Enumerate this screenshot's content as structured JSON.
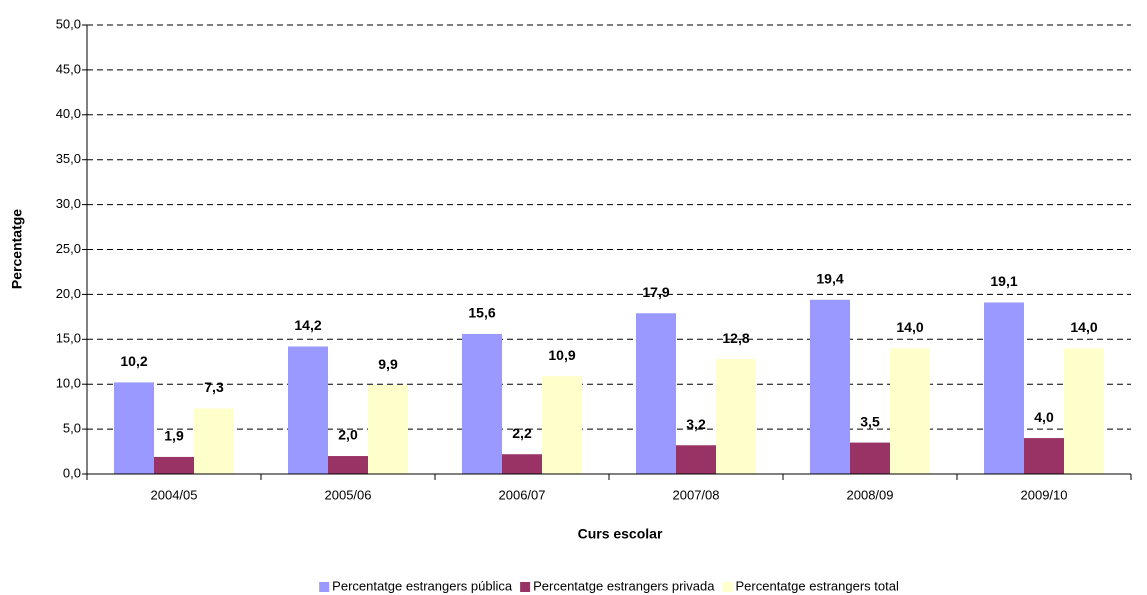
{
  "chart_data": {
    "type": "bar",
    "x_label": "Curs escolar",
    "y_label": "Percentatge",
    "categories": [
      "2004/05",
      "2005/06",
      "2006/07",
      "2007/08",
      "2008/09",
      "2009/10"
    ],
    "series": [
      {
        "name": "Percentatge estrangers pública",
        "color": "#9999ff",
        "values": [
          10.2,
          14.2,
          15.6,
          17.9,
          19.4,
          19.1
        ],
        "value_labels": [
          "10,2",
          "14,2",
          "15,6",
          "17,9",
          "19,4",
          "19,1"
        ]
      },
      {
        "name": "Percentatge estrangers privada",
        "color": "#993366",
        "values": [
          1.9,
          2.0,
          2.2,
          3.2,
          3.5,
          4.0
        ],
        "value_labels": [
          "1,9",
          "2,0",
          "2,2",
          "3,2",
          "3,5",
          "4,0"
        ]
      },
      {
        "name": "Percentatge estrangers total",
        "color": "#ffffcc",
        "values": [
          7.3,
          9.9,
          10.9,
          12.8,
          14.0,
          14.0
        ],
        "value_labels": [
          "7,3",
          "9,9",
          "10,9",
          "12,8",
          "14,0",
          "14,0"
        ]
      }
    ],
    "ylim": [
      0,
      50
    ],
    "yticks": [
      {
        "value": 0,
        "label": "0,0"
      },
      {
        "value": 5,
        "label": "5,0"
      },
      {
        "value": 10,
        "label": "10,0"
      },
      {
        "value": 15,
        "label": "15,0"
      },
      {
        "value": 20,
        "label": "20,0"
      },
      {
        "value": 25,
        "label": "25,0"
      },
      {
        "value": 30,
        "label": "30,0"
      },
      {
        "value": 35,
        "label": "35,0"
      },
      {
        "value": 40,
        "label": "40,0"
      },
      {
        "value": 45,
        "label": "45,0"
      },
      {
        "value": 50,
        "label": "50,0"
      }
    ],
    "grid": true,
    "legend": "bottom"
  }
}
